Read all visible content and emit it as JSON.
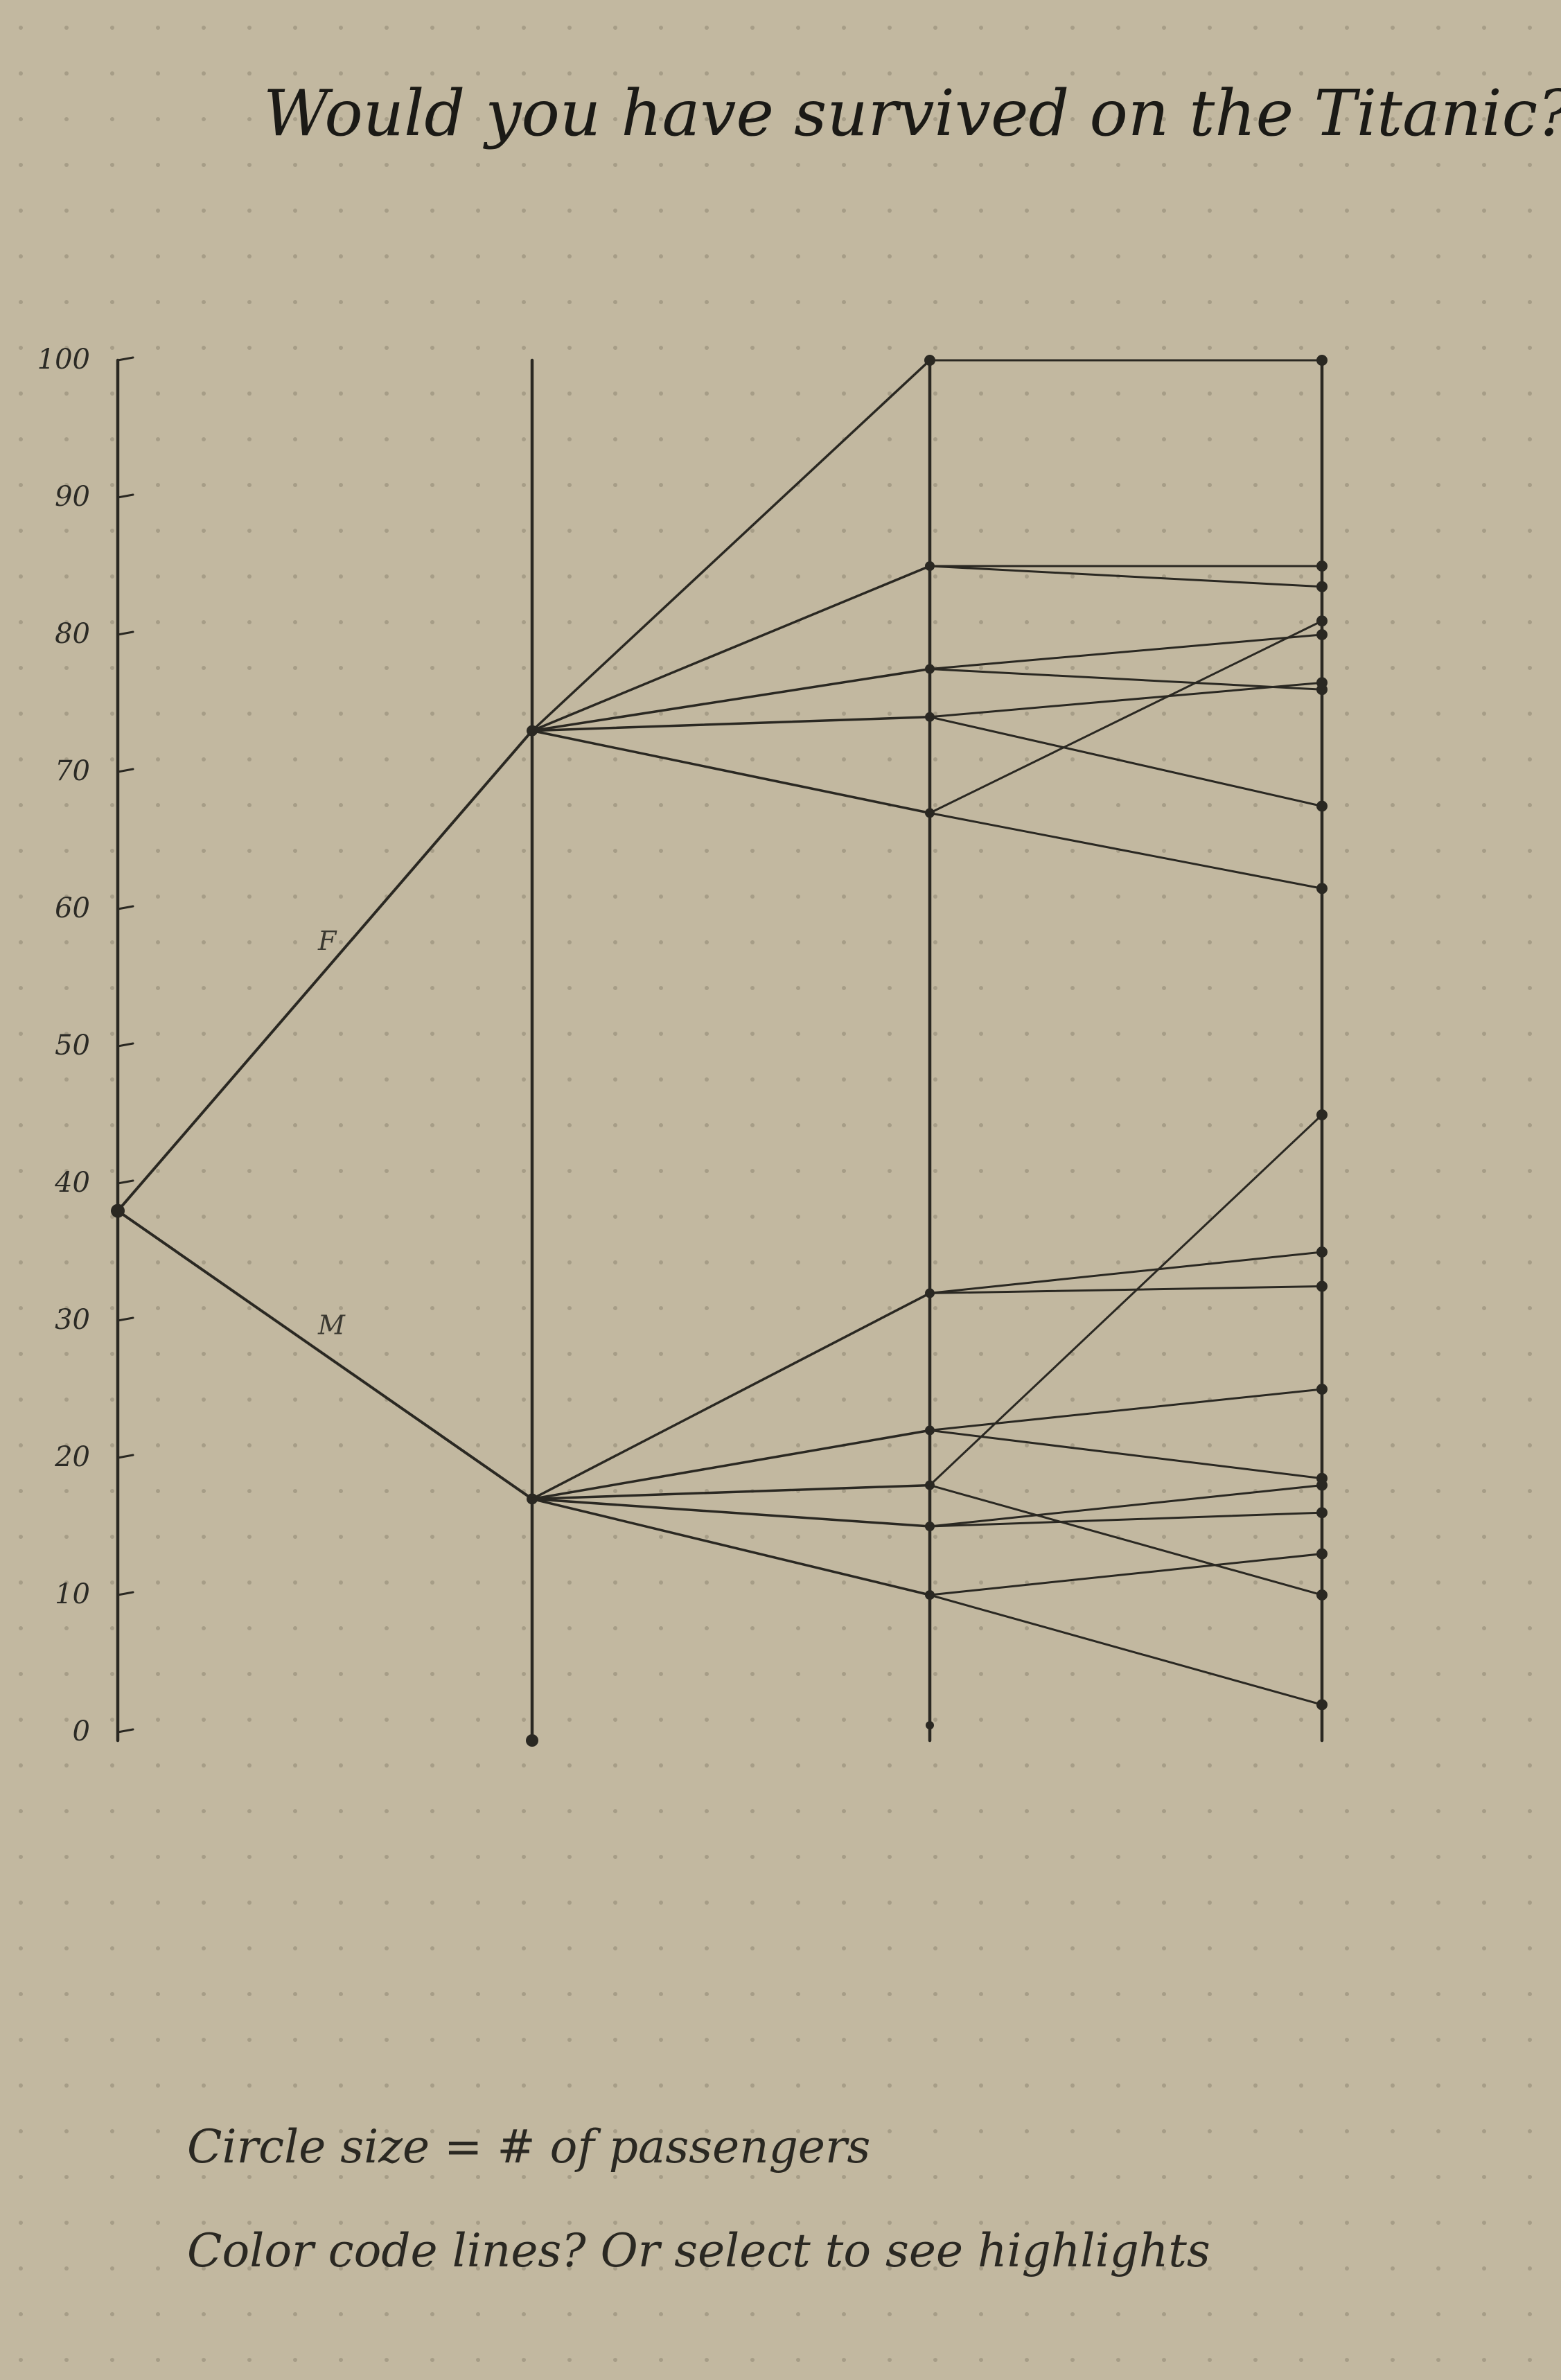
{
  "title": "Would you have survived on the Titanic?",
  "notes": [
    "Circle size = # of passengers",
    "Color code lines? Or select to see highlights"
  ],
  "colors": {
    "paper": "#c2b8a0",
    "ink": "#2a2822",
    "dot": "#8f8672"
  },
  "chart_data": {
    "type": "parallel-coordinates",
    "title": "Would you have survived on the Titanic?",
    "ylim": [
      0,
      100
    ],
    "ticks": [
      "0",
      "10",
      "20",
      "30",
      "40",
      "50",
      "60",
      "70",
      "80",
      "90",
      "100"
    ],
    "axes": 4,
    "root": 38,
    "branches": [
      {
        "label": "F",
        "value": 73,
        "children": [
          {
            "value": 100,
            "leaves": [
              100
            ]
          },
          {
            "value": 85,
            "leaves": [
              85,
              83.5
            ]
          },
          {
            "value": 77.5,
            "leaves": [
              80,
              76
            ]
          },
          {
            "value": 74,
            "leaves": [
              67.5,
              76.5
            ]
          },
          {
            "value": 67,
            "leaves": [
              81,
              61.5
            ]
          }
        ]
      },
      {
        "label": "M",
        "value": 17,
        "children": [
          {
            "value": 32,
            "leaves": [
              35,
              32.5
            ]
          },
          {
            "value": 22,
            "leaves": [
              25,
              18.5
            ]
          },
          {
            "value": 18,
            "leaves": [
              45,
              10
            ]
          },
          {
            "value": 15,
            "leaves": [
              18,
              16
            ]
          },
          {
            "value": 10,
            "leaves": [
              13,
              2
            ]
          }
        ]
      }
    ]
  }
}
